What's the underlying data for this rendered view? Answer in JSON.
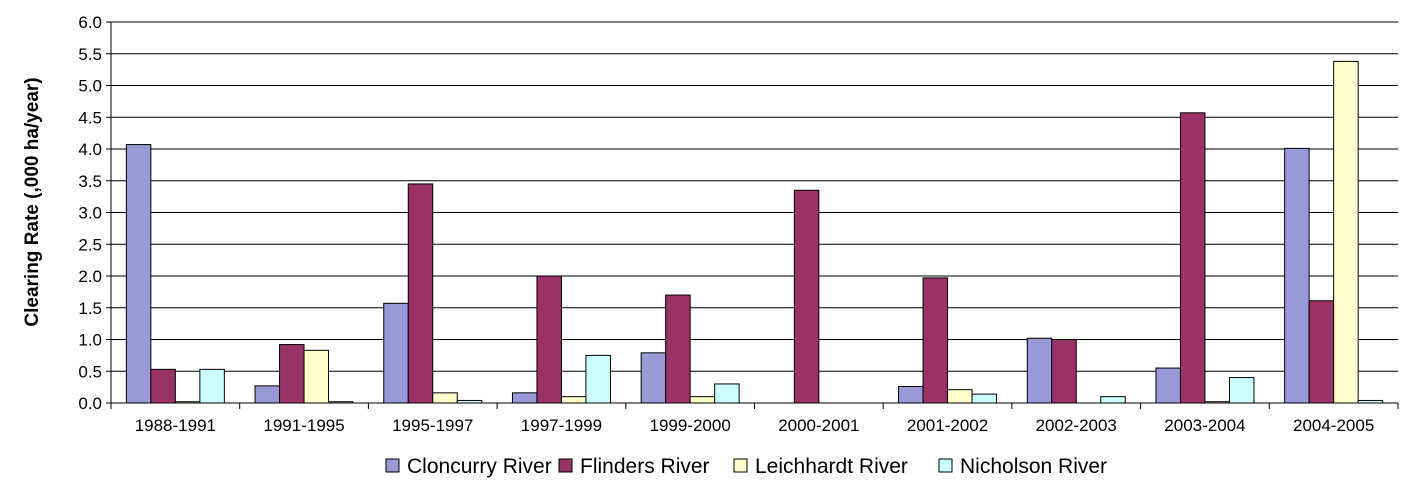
{
  "chart_data": {
    "type": "bar",
    "title": "",
    "xlabel": "",
    "ylabel": "Clearing Rate (,000 ha/year)",
    "ylim": [
      0,
      6.0
    ],
    "yticks": [
      "0.0",
      "0.5",
      "1.0",
      "1.5",
      "2.0",
      "2.5",
      "3.0",
      "3.5",
      "4.0",
      "4.5",
      "5.0",
      "5.5",
      "6.0"
    ],
    "grid": true,
    "legend": "bottom",
    "categories": [
      "1988-1991",
      "1991-1995",
      "1995-1997",
      "1997-1999",
      "1999-2000",
      "2000-2001",
      "2001-2002",
      "2002-2003",
      "2003-2004",
      "2004-2005"
    ],
    "series": [
      {
        "name": "Cloncurry River",
        "color": "#9999d6",
        "values": [
          4.07,
          0.27,
          1.57,
          0.16,
          0.79,
          0.0,
          0.26,
          1.02,
          0.55,
          4.01
        ]
      },
      {
        "name": "Flinders River",
        "color": "#993366",
        "values": [
          0.53,
          0.92,
          3.45,
          2.0,
          1.7,
          3.35,
          1.97,
          1.0,
          4.57,
          1.61
        ]
      },
      {
        "name": "Leichhardt River",
        "color": "#ffffcc",
        "values": [
          0.02,
          0.83,
          0.16,
          0.1,
          0.1,
          0.0,
          0.21,
          0.0,
          0.02,
          5.38
        ]
      },
      {
        "name": "Nicholson River",
        "color": "#ccffff",
        "values": [
          0.53,
          0.02,
          0.04,
          0.75,
          0.3,
          0.0,
          0.14,
          0.1,
          0.4,
          0.04
        ]
      }
    ]
  }
}
